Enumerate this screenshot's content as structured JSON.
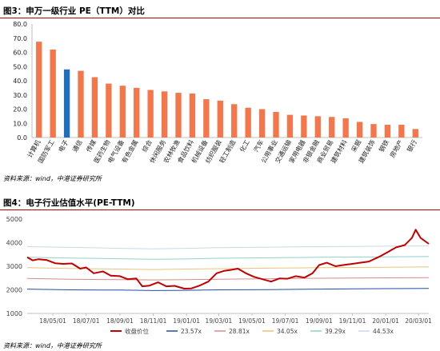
{
  "figures": [
    {
      "title": "图3：申万一级行业 PE（TTM）对比",
      "source": "资料来源：wind，中港证券研究所"
    },
    {
      "title": "图4：电子行业估值水平(PE-TTM)",
      "source": "资料来源：wind，中港证券研究所"
    }
  ],
  "chart_data": [
    {
      "type": "bar",
      "categories": [
        "计算机",
        "国防军工",
        "电子",
        "通信",
        "传媒",
        "医药生物",
        "电气设备",
        "有色金属",
        "综合",
        "休闲服务",
        "农林牧渔",
        "食品饮料",
        "机械设备",
        "纺织服装",
        "轻工制造",
        "化工",
        "汽车",
        "公用事业",
        "交通运输",
        "家用电器",
        "非银金融",
        "商业贸易",
        "建筑材料",
        "采掘",
        "建筑装饰",
        "钢铁",
        "房地产",
        "银行"
      ],
      "values": [
        67.5,
        62,
        48,
        47,
        42.5,
        38,
        36.5,
        35,
        33.5,
        32.5,
        31.5,
        31,
        27,
        26,
        23.5,
        21,
        20,
        18,
        16,
        15.5,
        15,
        14.5,
        13.5,
        11,
        9.5,
        9,
        9,
        6
      ],
      "highlight_index": 2,
      "colors": {
        "bar": "#f4764a",
        "highlight": "#1f6fbf"
      },
      "ylim": [
        0,
        80
      ],
      "yticks": [
        "0.0",
        "10.0",
        "20.0",
        "30.0",
        "40.0",
        "50.0",
        "60.0",
        "70.0",
        "80.0"
      ],
      "legend": "none",
      "grid": false
    },
    {
      "type": "line",
      "ylim": [
        1000,
        5000
      ],
      "yticks": [
        1000,
        2000,
        3000,
        4000,
        5000
      ],
      "xticks": [
        "18/05/01",
        "18/07/01",
        "18/09/01",
        "18/11/01",
        "19/01/01",
        "19/03/01",
        "19/05/01",
        "19/07/01",
        "19/09/01",
        "19/11/01",
        "20/01/01",
        "20/03/01"
      ],
      "x_start": "2018-03-15",
      "x_end": "2020-03-20",
      "legend": "bottom",
      "grid": false,
      "series": [
        {
          "name": "收盘价位",
          "color": "#c00000",
          "width": 2,
          "points": [
            [
              "2018-03-15",
              3380
            ],
            [
              "2018-03-25",
              3250
            ],
            [
              "2018-04-05",
              3300
            ],
            [
              "2018-04-20",
              3260
            ],
            [
              "2018-05-05",
              3130
            ],
            [
              "2018-05-20",
              3100
            ],
            [
              "2018-06-05",
              3120
            ],
            [
              "2018-06-20",
              2900
            ],
            [
              "2018-07-01",
              2950
            ],
            [
              "2018-07-15",
              2700
            ],
            [
              "2018-08-01",
              2780
            ],
            [
              "2018-08-15",
              2600
            ],
            [
              "2018-09-01",
              2580
            ],
            [
              "2018-09-15",
              2450
            ],
            [
              "2018-10-01",
              2480
            ],
            [
              "2018-10-12",
              2150
            ],
            [
              "2018-10-25",
              2180
            ],
            [
              "2018-11-10",
              2320
            ],
            [
              "2018-11-25",
              2150
            ],
            [
              "2018-12-10",
              2170
            ],
            [
              "2018-12-28",
              2050
            ],
            [
              "2019-01-10",
              2060
            ],
            [
              "2019-01-25",
              2180
            ],
            [
              "2019-02-10",
              2350
            ],
            [
              "2019-02-25",
              2700
            ],
            [
              "2019-03-10",
              2800
            ],
            [
              "2019-03-25",
              2850
            ],
            [
              "2019-04-05",
              2900
            ],
            [
              "2019-04-20",
              2700
            ],
            [
              "2019-05-05",
              2550
            ],
            [
              "2019-05-20",
              2450
            ],
            [
              "2019-06-05",
              2350
            ],
            [
              "2019-06-20",
              2480
            ],
            [
              "2019-07-05",
              2470
            ],
            [
              "2019-07-20",
              2580
            ],
            [
              "2019-08-05",
              2520
            ],
            [
              "2019-08-20",
              2700
            ],
            [
              "2019-09-01",
              3050
            ],
            [
              "2019-09-15",
              3150
            ],
            [
              "2019-10-01",
              3000
            ],
            [
              "2019-10-15",
              3050
            ],
            [
              "2019-11-01",
              3100
            ],
            [
              "2019-11-15",
              3150
            ],
            [
              "2019-12-01",
              3200
            ],
            [
              "2019-12-20",
              3400
            ],
            [
              "2020-01-05",
              3600
            ],
            [
              "2020-01-20",
              3800
            ],
            [
              "2020-02-05",
              3900
            ],
            [
              "2020-02-18",
              4200
            ],
            [
              "2020-02-25",
              4550
            ],
            [
              "2020-03-05",
              4200
            ],
            [
              "2020-03-20",
              3950
            ]
          ]
        },
        {
          "name": "23.57x",
          "color": "#1f4e9e",
          "width": 1,
          "points": [
            [
              "2018-03-15",
              2030
            ],
            [
              "2018-06-01",
              2000
            ],
            [
              "2018-09-01",
              1990
            ],
            [
              "2018-11-01",
              1970
            ],
            [
              "2019-01-01",
              1980
            ],
            [
              "2019-03-01",
              2000
            ],
            [
              "2019-06-01",
              2010
            ],
            [
              "2019-09-01",
              2030
            ],
            [
              "2019-11-01",
              2040
            ],
            [
              "2020-01-01",
              2050
            ],
            [
              "2020-03-20",
              2060
            ]
          ]
        },
        {
          "name": "28.81x",
          "color": "#d98a8a",
          "width": 1,
          "points": [
            [
              "2018-03-15",
              2480
            ],
            [
              "2018-06-01",
              2450
            ],
            [
              "2018-09-01",
              2430
            ],
            [
              "2018-11-01",
              2420
            ],
            [
              "2019-01-01",
              2430
            ],
            [
              "2019-03-01",
              2450
            ],
            [
              "2019-06-01",
              2470
            ],
            [
              "2019-09-01",
              2490
            ],
            [
              "2019-11-01",
              2500
            ],
            [
              "2020-01-01",
              2510
            ],
            [
              "2020-03-20",
              2520
            ]
          ]
        },
        {
          "name": "34.05x",
          "color": "#e8c47a",
          "width": 1,
          "points": [
            [
              "2018-03-15",
              2940
            ],
            [
              "2018-06-01",
              2910
            ],
            [
              "2018-09-01",
              2880
            ],
            [
              "2018-11-01",
              2860
            ],
            [
              "2019-01-01",
              2880
            ],
            [
              "2019-03-01",
              2900
            ],
            [
              "2019-06-01",
              2920
            ],
            [
              "2019-09-01",
              2940
            ],
            [
              "2019-11-01",
              2950
            ],
            [
              "2020-01-01",
              2960
            ],
            [
              "2020-03-20",
              2970
            ]
          ]
        },
        {
          "name": "39.29x",
          "color": "#8fd1c9",
          "width": 1,
          "points": [
            [
              "2018-03-15",
              3380
            ],
            [
              "2018-06-01",
              3350
            ],
            [
              "2018-09-01",
              3320
            ],
            [
              "2018-11-01",
              3300
            ],
            [
              "2019-01-01",
              3310
            ],
            [
              "2019-03-01",
              3340
            ],
            [
              "2019-06-01",
              3360
            ],
            [
              "2019-09-01",
              3380
            ],
            [
              "2019-11-01",
              3390
            ],
            [
              "2020-01-01",
              3400
            ],
            [
              "2020-03-20",
              3410
            ]
          ]
        },
        {
          "name": "44.53x",
          "color": "#c8d8ea",
          "width": 1,
          "points": [
            [
              "2018-03-15",
              3830
            ],
            [
              "2018-06-01",
              3800
            ],
            [
              "2018-09-01",
              3760
            ],
            [
              "2018-11-01",
              3740
            ],
            [
              "2019-01-01",
              3760
            ],
            [
              "2019-03-01",
              3790
            ],
            [
              "2019-06-01",
              3810
            ],
            [
              "2019-09-01",
              3830
            ],
            [
              "2019-11-01",
              3840
            ],
            [
              "2020-01-01",
              3850
            ],
            [
              "2020-03-20",
              3860
            ]
          ]
        }
      ]
    }
  ]
}
